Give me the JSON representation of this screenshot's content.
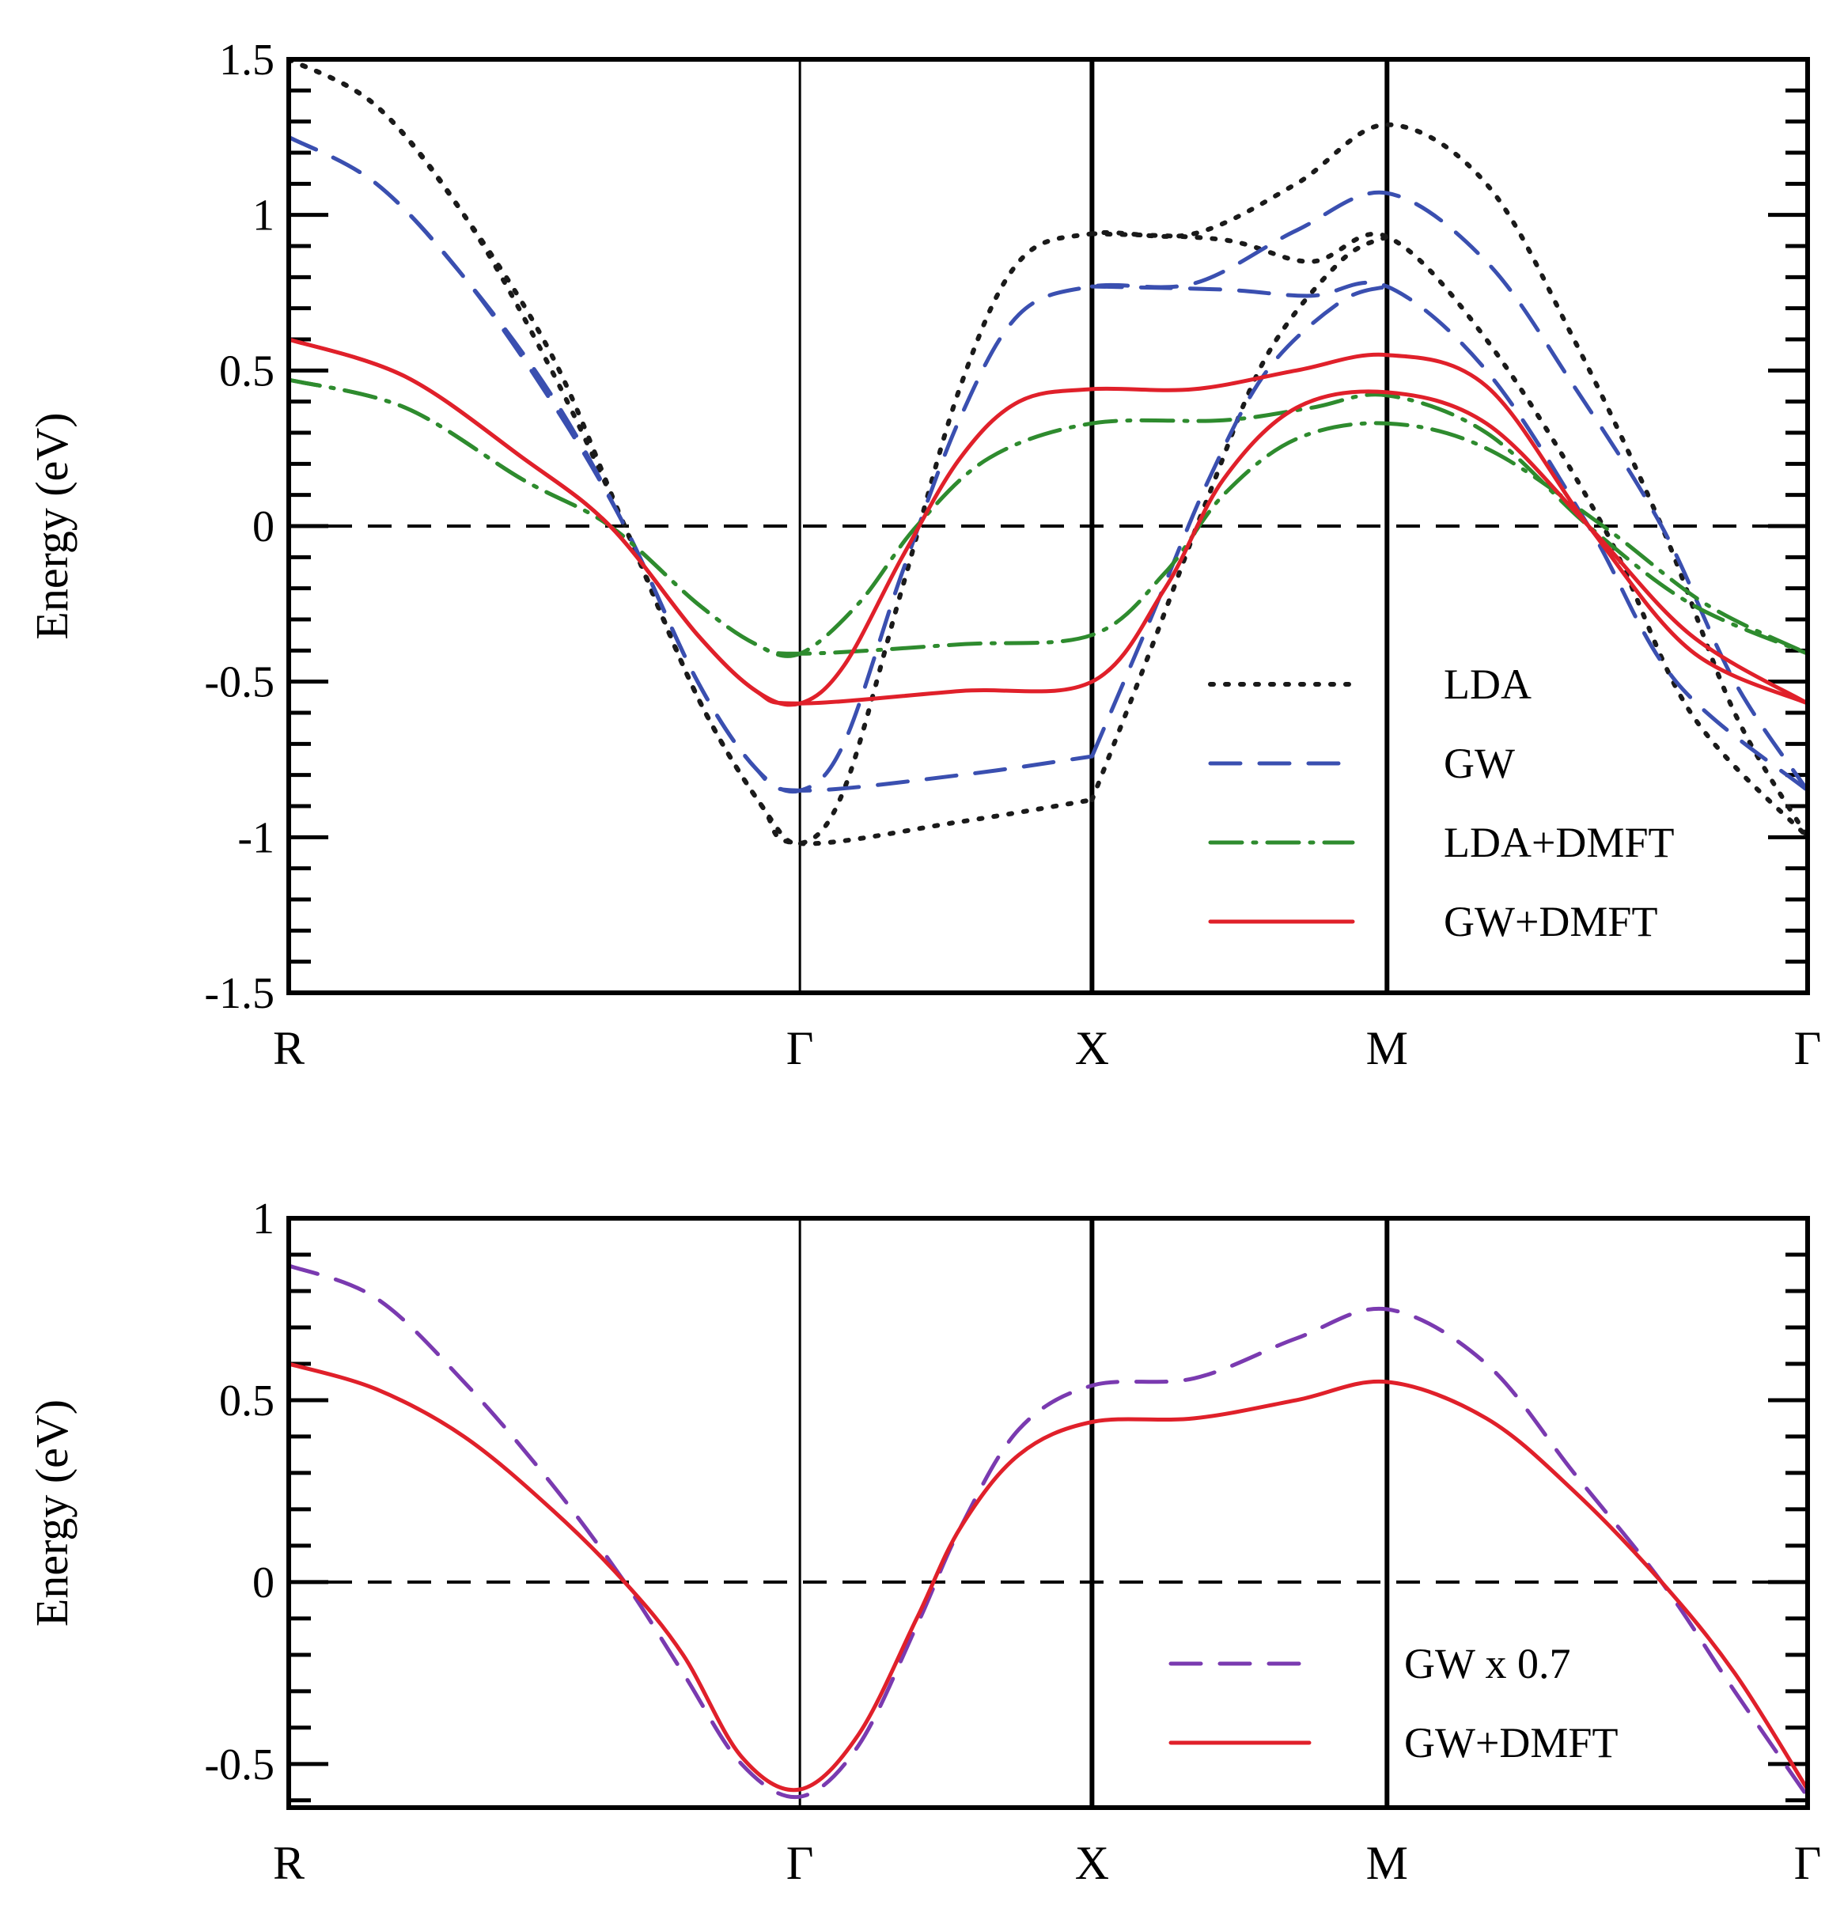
{
  "chart_data": [
    {
      "type": "line",
      "ylabel": "Energy (eV)",
      "xlabel": "",
      "ylim": [
        -1.5,
        1.5
      ],
      "xlim": [
        0,
        5.2
      ],
      "yticks": [
        1.5,
        1,
        0.5,
        0,
        -0.5,
        -1,
        -1.5
      ],
      "ytick_labels": [
        "1.5",
        "1",
        "0.5",
        "0",
        "-0.5",
        "-1",
        "-1.5"
      ],
      "k_points": [
        {
          "label": "R",
          "x": 0
        },
        {
          "label": "Γ",
          "x": 1.75
        },
        {
          "label": "X",
          "x": 2.75
        },
        {
          "label": "M",
          "x": 3.76
        },
        {
          "label": "Γ",
          "x": 5.2
        }
      ],
      "fermi_level": 0,
      "legend": [
        {
          "label": "LDA",
          "color": "#1a1a1a",
          "style": "dotted"
        },
        {
          "label": "GW",
          "color": "#3a4fb0",
          "style": "dashed"
        },
        {
          "label": "LDA+DMFT",
          "color": "#2e8b2e",
          "style": "dashdot"
        },
        {
          "label": "GW+DMFT",
          "color": "#e0202a",
          "style": "solid"
        }
      ],
      "series": [
        {
          "name": "LDA",
          "color": "#1a1a1a",
          "style": "dotted",
          "points": [
            [
              0,
              1.5
            ],
            [
              0.3,
              1.35
            ],
            [
              0.6,
              1.0
            ],
            [
              0.9,
              0.5
            ],
            [
              1.15,
              0.0
            ],
            [
              1.4,
              -0.55
            ],
            [
              1.62,
              -0.9
            ],
            [
              1.75,
              -1.02
            ],
            [
              2.3,
              -0.95
            ],
            [
              2.75,
              -0.88
            ]
          ]
        },
        {
          "name": "LDA",
          "color": "#1a1a1a",
          "style": "dotted",
          "points": [
            [
              0,
              1.5
            ],
            [
              0.3,
              1.35
            ],
            [
              0.6,
              1.0
            ],
            [
              0.9,
              0.55
            ],
            [
              1.15,
              0.0
            ],
            [
              1.4,
              -0.55
            ],
            [
              1.62,
              -0.9
            ],
            [
              1.75,
              -1.02
            ],
            [
              1.9,
              -0.85
            ],
            [
              2.1,
              -0.2
            ],
            [
              2.3,
              0.45
            ],
            [
              2.5,
              0.85
            ],
            [
              2.75,
              0.94
            ],
            [
              3.1,
              0.94
            ],
            [
              3.45,
              1.1
            ],
            [
              3.76,
              1.29
            ],
            [
              4.1,
              1.1
            ],
            [
              4.4,
              0.6
            ],
            [
              4.7,
              0.0
            ],
            [
              4.95,
              -0.6
            ],
            [
              5.2,
              -1.0
            ]
          ]
        },
        {
          "name": "LDA",
          "color": "#1a1a1a",
          "style": "dotted",
          "points": [
            [
              2.75,
              0.94
            ],
            [
              3.2,
              0.92
            ],
            [
              3.5,
              0.85
            ],
            [
              3.76,
              0.93
            ],
            [
              4.1,
              0.6
            ],
            [
              4.5,
              0.0
            ],
            [
              4.8,
              -0.6
            ],
            [
              5.2,
              -1.0
            ]
          ]
        },
        {
          "name": "LDA",
          "color": "#1a1a1a",
          "style": "dotted",
          "points": [
            [
              2.75,
              -0.88
            ],
            [
              2.95,
              -0.4
            ],
            [
              3.15,
              0.1
            ],
            [
              3.35,
              0.55
            ],
            [
              3.6,
              0.85
            ],
            [
              3.76,
              0.93
            ]
          ]
        },
        {
          "name": "GW",
          "color": "#3a4fb0",
          "style": "dashed",
          "points": [
            [
              0,
              1.25
            ],
            [
              0.3,
              1.1
            ],
            [
              0.6,
              0.8
            ],
            [
              0.9,
              0.4
            ],
            [
              1.15,
              0.0
            ],
            [
              1.4,
              -0.5
            ],
            [
              1.6,
              -0.78
            ],
            [
              1.75,
              -0.85
            ],
            [
              2.3,
              -0.8
            ],
            [
              2.75,
              -0.74
            ]
          ]
        },
        {
          "name": "GW",
          "color": "#3a4fb0",
          "style": "dashed",
          "points": [
            [
              0,
              1.25
            ],
            [
              0.3,
              1.1
            ],
            [
              0.6,
              0.8
            ],
            [
              0.9,
              0.42
            ],
            [
              1.15,
              0.0
            ],
            [
              1.4,
              -0.5
            ],
            [
              1.6,
              -0.78
            ],
            [
              1.75,
              -0.85
            ],
            [
              1.9,
              -0.7
            ],
            [
              2.1,
              -0.15
            ],
            [
              2.3,
              0.35
            ],
            [
              2.5,
              0.68
            ],
            [
              2.75,
              0.77
            ],
            [
              3.1,
              0.78
            ],
            [
              3.45,
              0.95
            ],
            [
              3.76,
              1.07
            ],
            [
              4.1,
              0.85
            ],
            [
              4.4,
              0.45
            ],
            [
              4.7,
              0.0
            ],
            [
              4.95,
              -0.5
            ],
            [
              5.2,
              -0.85
            ]
          ]
        },
        {
          "name": "GW",
          "color": "#3a4fb0",
          "style": "dashed",
          "points": [
            [
              2.75,
              0.77
            ],
            [
              3.2,
              0.76
            ],
            [
              3.5,
              0.74
            ],
            [
              3.76,
              0.77
            ],
            [
              4.1,
              0.5
            ],
            [
              4.45,
              0.0
            ],
            [
              4.75,
              -0.5
            ],
            [
              5.2,
              -0.85
            ]
          ]
        },
        {
          "name": "GW",
          "color": "#3a4fb0",
          "style": "dashed",
          "points": [
            [
              2.75,
              -0.74
            ],
            [
              2.95,
              -0.3
            ],
            [
              3.15,
              0.15
            ],
            [
              3.35,
              0.5
            ],
            [
              3.6,
              0.72
            ],
            [
              3.76,
              0.77
            ]
          ]
        },
        {
          "name": "LDA+DMFT",
          "color": "#2e8b2e",
          "style": "dashdot",
          "points": [
            [
              0,
              0.47
            ],
            [
              0.4,
              0.38
            ],
            [
              0.8,
              0.15
            ],
            [
              1.1,
              0.0
            ],
            [
              1.4,
              -0.25
            ],
            [
              1.6,
              -0.38
            ],
            [
              1.75,
              -0.41
            ],
            [
              2.3,
              -0.38
            ],
            [
              2.75,
              -0.35
            ],
            [
              3.0,
              -0.15
            ],
            [
              3.2,
              0.1
            ],
            [
              3.45,
              0.28
            ],
            [
              3.76,
              0.33
            ],
            [
              4.1,
              0.25
            ],
            [
              4.5,
              0.0
            ],
            [
              4.85,
              -0.25
            ],
            [
              5.2,
              -0.41
            ]
          ]
        },
        {
          "name": "LDA+DMFT",
          "color": "#2e8b2e",
          "style": "dashdot",
          "points": [
            [
              0,
              0.47
            ],
            [
              0.4,
              0.38
            ],
            [
              0.8,
              0.15
            ],
            [
              1.1,
              0.0
            ],
            [
              1.4,
              -0.25
            ],
            [
              1.6,
              -0.38
            ],
            [
              1.75,
              -0.41
            ],
            [
              1.95,
              -0.25
            ],
            [
              2.15,
              0.0
            ],
            [
              2.4,
              0.22
            ],
            [
              2.75,
              0.33
            ],
            [
              3.2,
              0.34
            ],
            [
              3.5,
              0.38
            ],
            [
              3.76,
              0.42
            ],
            [
              4.1,
              0.3
            ],
            [
              4.45,
              0.0
            ],
            [
              4.8,
              -0.25
            ],
            [
              5.2,
              -0.41
            ]
          ]
        },
        {
          "name": "GW+DMFT",
          "color": "#e0202a",
          "style": "solid",
          "points": [
            [
              0,
              0.6
            ],
            [
              0.4,
              0.48
            ],
            [
              0.8,
              0.22
            ],
            [
              1.1,
              0.0
            ],
            [
              1.4,
              -0.35
            ],
            [
              1.6,
              -0.53
            ],
            [
              1.75,
              -0.57
            ],
            [
              2.3,
              -0.53
            ],
            [
              2.75,
              -0.5
            ],
            [
              3.0,
              -0.2
            ],
            [
              3.2,
              0.15
            ],
            [
              3.45,
              0.38
            ],
            [
              3.76,
              0.43
            ],
            [
              4.1,
              0.33
            ],
            [
              4.45,
              0.0
            ],
            [
              4.8,
              -0.35
            ],
            [
              5.2,
              -0.57
            ]
          ]
        },
        {
          "name": "GW+DMFT",
          "color": "#e0202a",
          "style": "solid",
          "points": [
            [
              0,
              0.6
            ],
            [
              0.4,
              0.48
            ],
            [
              0.8,
              0.22
            ],
            [
              1.1,
              0.0
            ],
            [
              1.4,
              -0.35
            ],
            [
              1.6,
              -0.53
            ],
            [
              1.75,
              -0.57
            ],
            [
              1.9,
              -0.45
            ],
            [
              2.1,
              -0.1
            ],
            [
              2.3,
              0.22
            ],
            [
              2.5,
              0.4
            ],
            [
              2.75,
              0.44
            ],
            [
              3.1,
              0.44
            ],
            [
              3.45,
              0.5
            ],
            [
              3.76,
              0.55
            ],
            [
              4.1,
              0.45
            ],
            [
              4.45,
              0.0
            ],
            [
              4.8,
              -0.4
            ],
            [
              5.2,
              -0.57
            ]
          ]
        }
      ]
    },
    {
      "type": "line",
      "ylabel": "Energy (eV)",
      "xlabel": "",
      "ylim": [
        -0.62,
        1.0
      ],
      "xlim": [
        0,
        5.2
      ],
      "yticks": [
        1,
        0.5,
        0,
        -0.5
      ],
      "ytick_labels": [
        "1",
        "0.5",
        "0",
        "-0.5"
      ],
      "k_points": [
        {
          "label": "R",
          "x": 0
        },
        {
          "label": "Γ",
          "x": 1.75
        },
        {
          "label": "X",
          "x": 2.75
        },
        {
          "label": "M",
          "x": 3.76
        },
        {
          "label": "Γ",
          "x": 5.2
        }
      ],
      "fermi_level": 0,
      "legend": [
        {
          "label": "GW x 0.7",
          "color": "#7a3ab0",
          "style": "dashed"
        },
        {
          "label": "GW+DMFT",
          "color": "#e0202a",
          "style": "solid"
        }
      ],
      "series": [
        {
          "name": "GW x 0.7",
          "color": "#7a3ab0",
          "style": "dashed",
          "points": [
            [
              0,
              0.87
            ],
            [
              0.3,
              0.78
            ],
            [
              0.6,
              0.55
            ],
            [
              0.9,
              0.27
            ],
            [
              1.15,
              0.0
            ],
            [
              1.35,
              -0.25
            ],
            [
              1.55,
              -0.5
            ],
            [
              1.75,
              -0.59
            ],
            [
              1.95,
              -0.45
            ],
            [
              2.15,
              -0.12
            ],
            [
              2.3,
              0.15
            ],
            [
              2.5,
              0.42
            ],
            [
              2.75,
              0.54
            ],
            [
              3.1,
              0.56
            ],
            [
              3.45,
              0.67
            ],
            [
              3.76,
              0.75
            ],
            [
              4.1,
              0.6
            ],
            [
              4.4,
              0.3
            ],
            [
              4.7,
              0.0
            ],
            [
              4.95,
              -0.3
            ],
            [
              5.2,
              -0.59
            ]
          ]
        },
        {
          "name": "GW+DMFT",
          "color": "#e0202a",
          "style": "solid",
          "points": [
            [
              0,
              0.6
            ],
            [
              0.3,
              0.53
            ],
            [
              0.6,
              0.4
            ],
            [
              0.9,
              0.2
            ],
            [
              1.15,
              0.0
            ],
            [
              1.35,
              -0.2
            ],
            [
              1.55,
              -0.48
            ],
            [
              1.75,
              -0.57
            ],
            [
              1.95,
              -0.42
            ],
            [
              2.15,
              -0.1
            ],
            [
              2.3,
              0.15
            ],
            [
              2.5,
              0.35
            ],
            [
              2.75,
              0.44
            ],
            [
              3.1,
              0.45
            ],
            [
              3.45,
              0.5
            ],
            [
              3.76,
              0.55
            ],
            [
              4.1,
              0.45
            ],
            [
              4.4,
              0.25
            ],
            [
              4.7,
              0.0
            ],
            [
              4.95,
              -0.25
            ],
            [
              5.2,
              -0.57
            ]
          ]
        }
      ]
    }
  ]
}
